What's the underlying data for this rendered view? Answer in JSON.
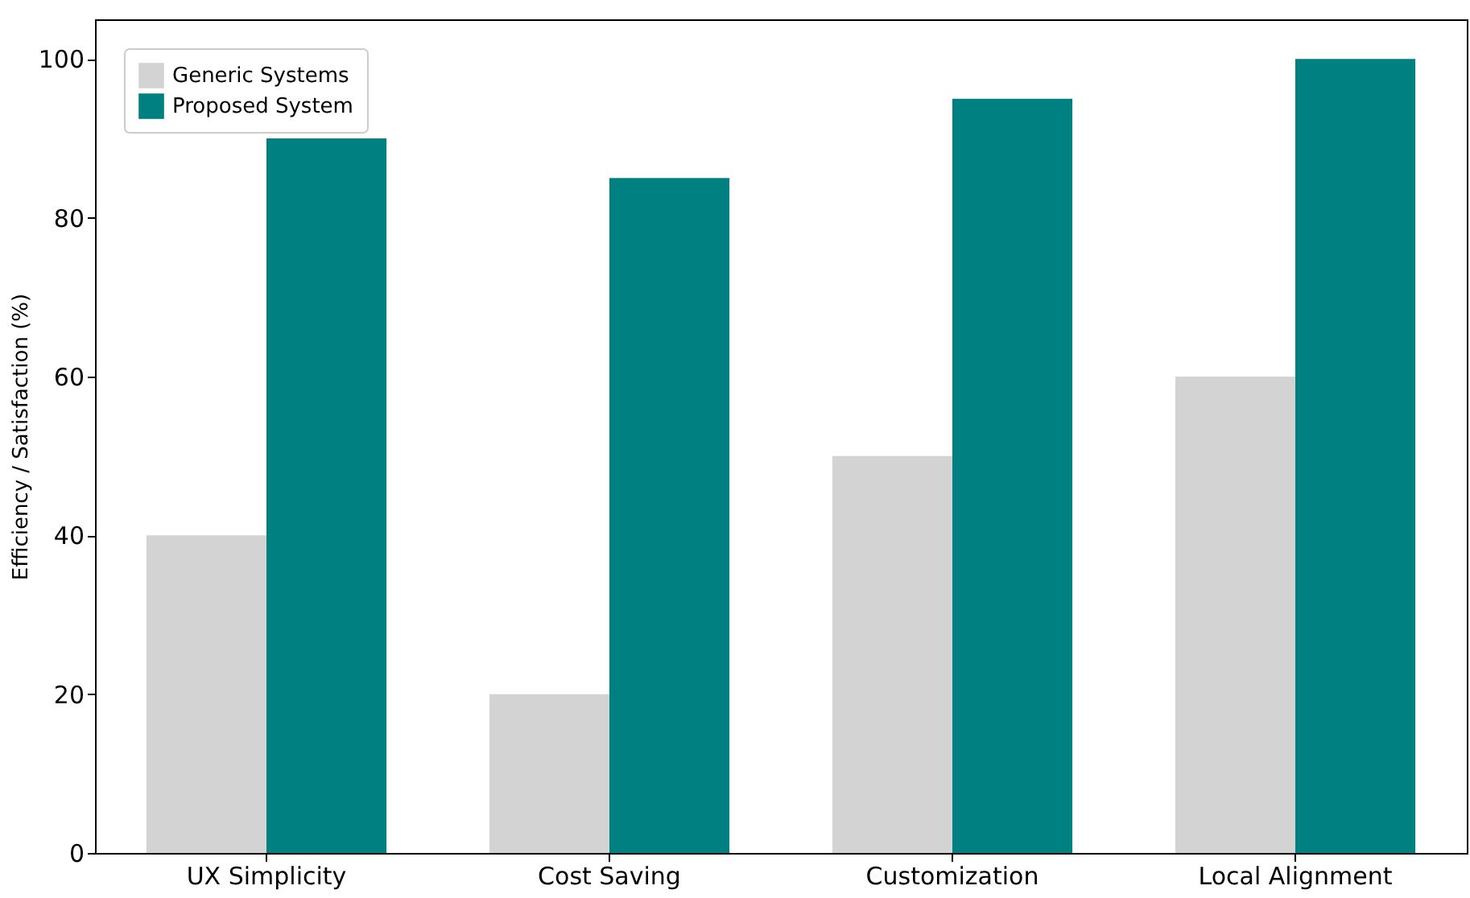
{
  "chart_data": {
    "type": "bar",
    "ylabel": "Efficiency / Satisfaction (%)",
    "categories": [
      "UX Simplicity",
      "Cost Saving",
      "Customization",
      "Local Alignment"
    ],
    "series": [
      {
        "name": "Generic Systems",
        "color": "#d3d3d3",
        "values": [
          40,
          20,
          50,
          60
        ]
      },
      {
        "name": "Proposed System",
        "color": "#008080",
        "values": [
          90,
          85,
          95,
          100
        ]
      }
    ],
    "ylim": [
      0,
      105
    ],
    "yticks": [
      0,
      20,
      40,
      60,
      80,
      100
    ],
    "legend": "top left"
  }
}
